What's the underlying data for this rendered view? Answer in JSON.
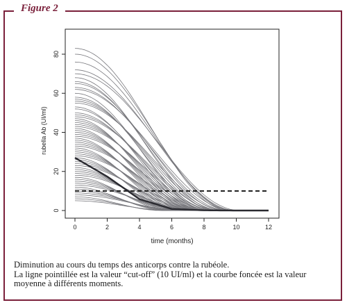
{
  "figure_label": "Figure 2",
  "caption": {
    "line1": "Diminution au cours du temps des anticorps contre la rubéole.",
    "line2": "La ligne pointillée est la valeur “cut-off” (10 UI/ml) et la courbe foncée est la valeur",
    "line3": "moyenne à différents moments."
  },
  "colors": {
    "frame": "#7a1f3a",
    "curves": "#77777c",
    "mean_curve": "#2a2a30",
    "cutoff": "#1a1a1a"
  },
  "chart_data": {
    "type": "line",
    "xlabel": "time (months)",
    "ylabel": "rubella Ab (UI/ml)",
    "xlim": [
      0,
      12
    ],
    "ylim": [
      0,
      85
    ],
    "x_ticks": [
      0,
      2,
      4,
      6,
      8,
      10,
      12
    ],
    "y_ticks": [
      0,
      20,
      40,
      60,
      80
    ],
    "decay_to_zero_month": 12,
    "initial_values": [
      83,
      80,
      76,
      72,
      70,
      68,
      66,
      65,
      63,
      62,
      60,
      58,
      57,
      56,
      55,
      53,
      52,
      50,
      49,
      48,
      47,
      46,
      45,
      44,
      43,
      42,
      41,
      40,
      39,
      38,
      37,
      36,
      35,
      34,
      33,
      32,
      31,
      30,
      29,
      28,
      27,
      26,
      25,
      24,
      23,
      22,
      21,
      20,
      19,
      18,
      17,
      16,
      15,
      14,
      13,
      12,
      11,
      10,
      9,
      8,
      7,
      6,
      5
    ],
    "mean_curve": {
      "x": [
        0,
        2,
        4,
        6,
        8,
        10,
        12
      ],
      "y": [
        27,
        17.4,
        5.8,
        0.8,
        0.1,
        0,
        0
      ]
    },
    "cutoff_line": {
      "y": 10,
      "style": "dashed"
    },
    "grid": false
  }
}
